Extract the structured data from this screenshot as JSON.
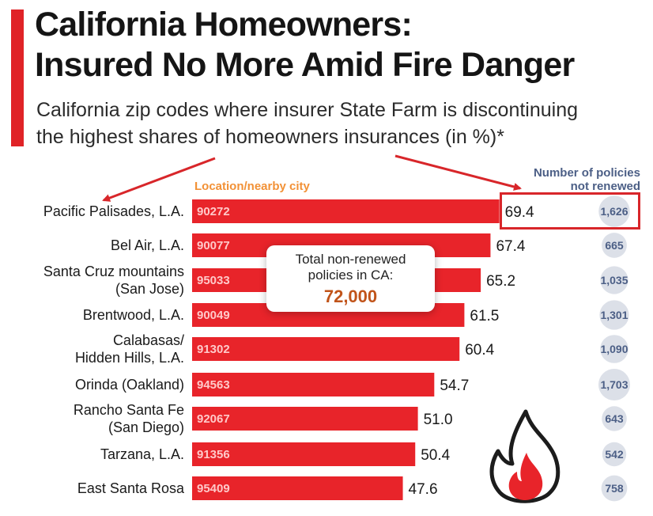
{
  "header": {
    "title_line1": "California Homeowners:",
    "title_line2": "Insured No More Amid Fire Danger",
    "subtitle_line1": "California zip codes where insurer State Farm is discontinuing",
    "subtitle_line2": "the highest shares of homeowners insurances (in %)*"
  },
  "column_headers": {
    "location": "Location/nearby city",
    "policies_line1": "Number of policies",
    "policies_line2": "not renewed"
  },
  "callout": {
    "text": "Total non-renewed policies in CA:",
    "value": "72,000"
  },
  "colors": {
    "accent": "#e02327",
    "bar": "#e8242a",
    "zip_text": "#ffc9c9",
    "header_orange": "#f29136",
    "policy_text": "#4c5f86",
    "policy_bubble": "#c9d0dc",
    "callout_value": "#c1541a",
    "highlight": "#d8262a"
  },
  "icons": {
    "fire": "fire-icon",
    "arrows": "arrow-pointer-icon"
  },
  "chart_data": {
    "type": "bar",
    "orientation": "horizontal",
    "categories": [
      [
        "Pacific Palisades, L.A."
      ],
      [
        "Bel Air, L.A."
      ],
      [
        "Santa Cruz mountains",
        "(San Jose)"
      ],
      [
        "Brentwood, L.A."
      ],
      [
        "Calabasas/",
        "Hidden Hills, L.A."
      ],
      [
        "Orinda (Oakland)"
      ],
      [
        "Rancho Santa Fe",
        "(San Diego)"
      ],
      [
        "Tarzana, L.A."
      ],
      [
        "East Santa Rosa"
      ]
    ],
    "zip_codes": [
      "90272",
      "90077",
      "95033",
      "90049",
      "91302",
      "94563",
      "92067",
      "91356",
      "95409"
    ],
    "values": [
      69.4,
      67.4,
      65.2,
      61.5,
      60.4,
      54.7,
      51.0,
      50.4,
      47.6
    ],
    "value_labels": [
      "69.4",
      "67.4",
      "65.2",
      "61.5",
      "60.4",
      "54.7",
      "51.0",
      "50.4",
      "47.6"
    ],
    "policies": [
      1626,
      665,
      1035,
      1301,
      1090,
      1703,
      643,
      542,
      758
    ],
    "policy_labels": [
      "1,626",
      "665",
      "1,035",
      "1,301",
      "1,090",
      "1,703",
      "643",
      "542",
      "758"
    ],
    "title": "California Homeowners: Insured No More Amid Fire Danger",
    "subtitle": "California zip codes where insurer State Farm is discontinuing the highest shares of homeowners insurances (in %)*",
    "xlabel": "",
    "ylabel": "",
    "grid": false,
    "legend": "none"
  }
}
